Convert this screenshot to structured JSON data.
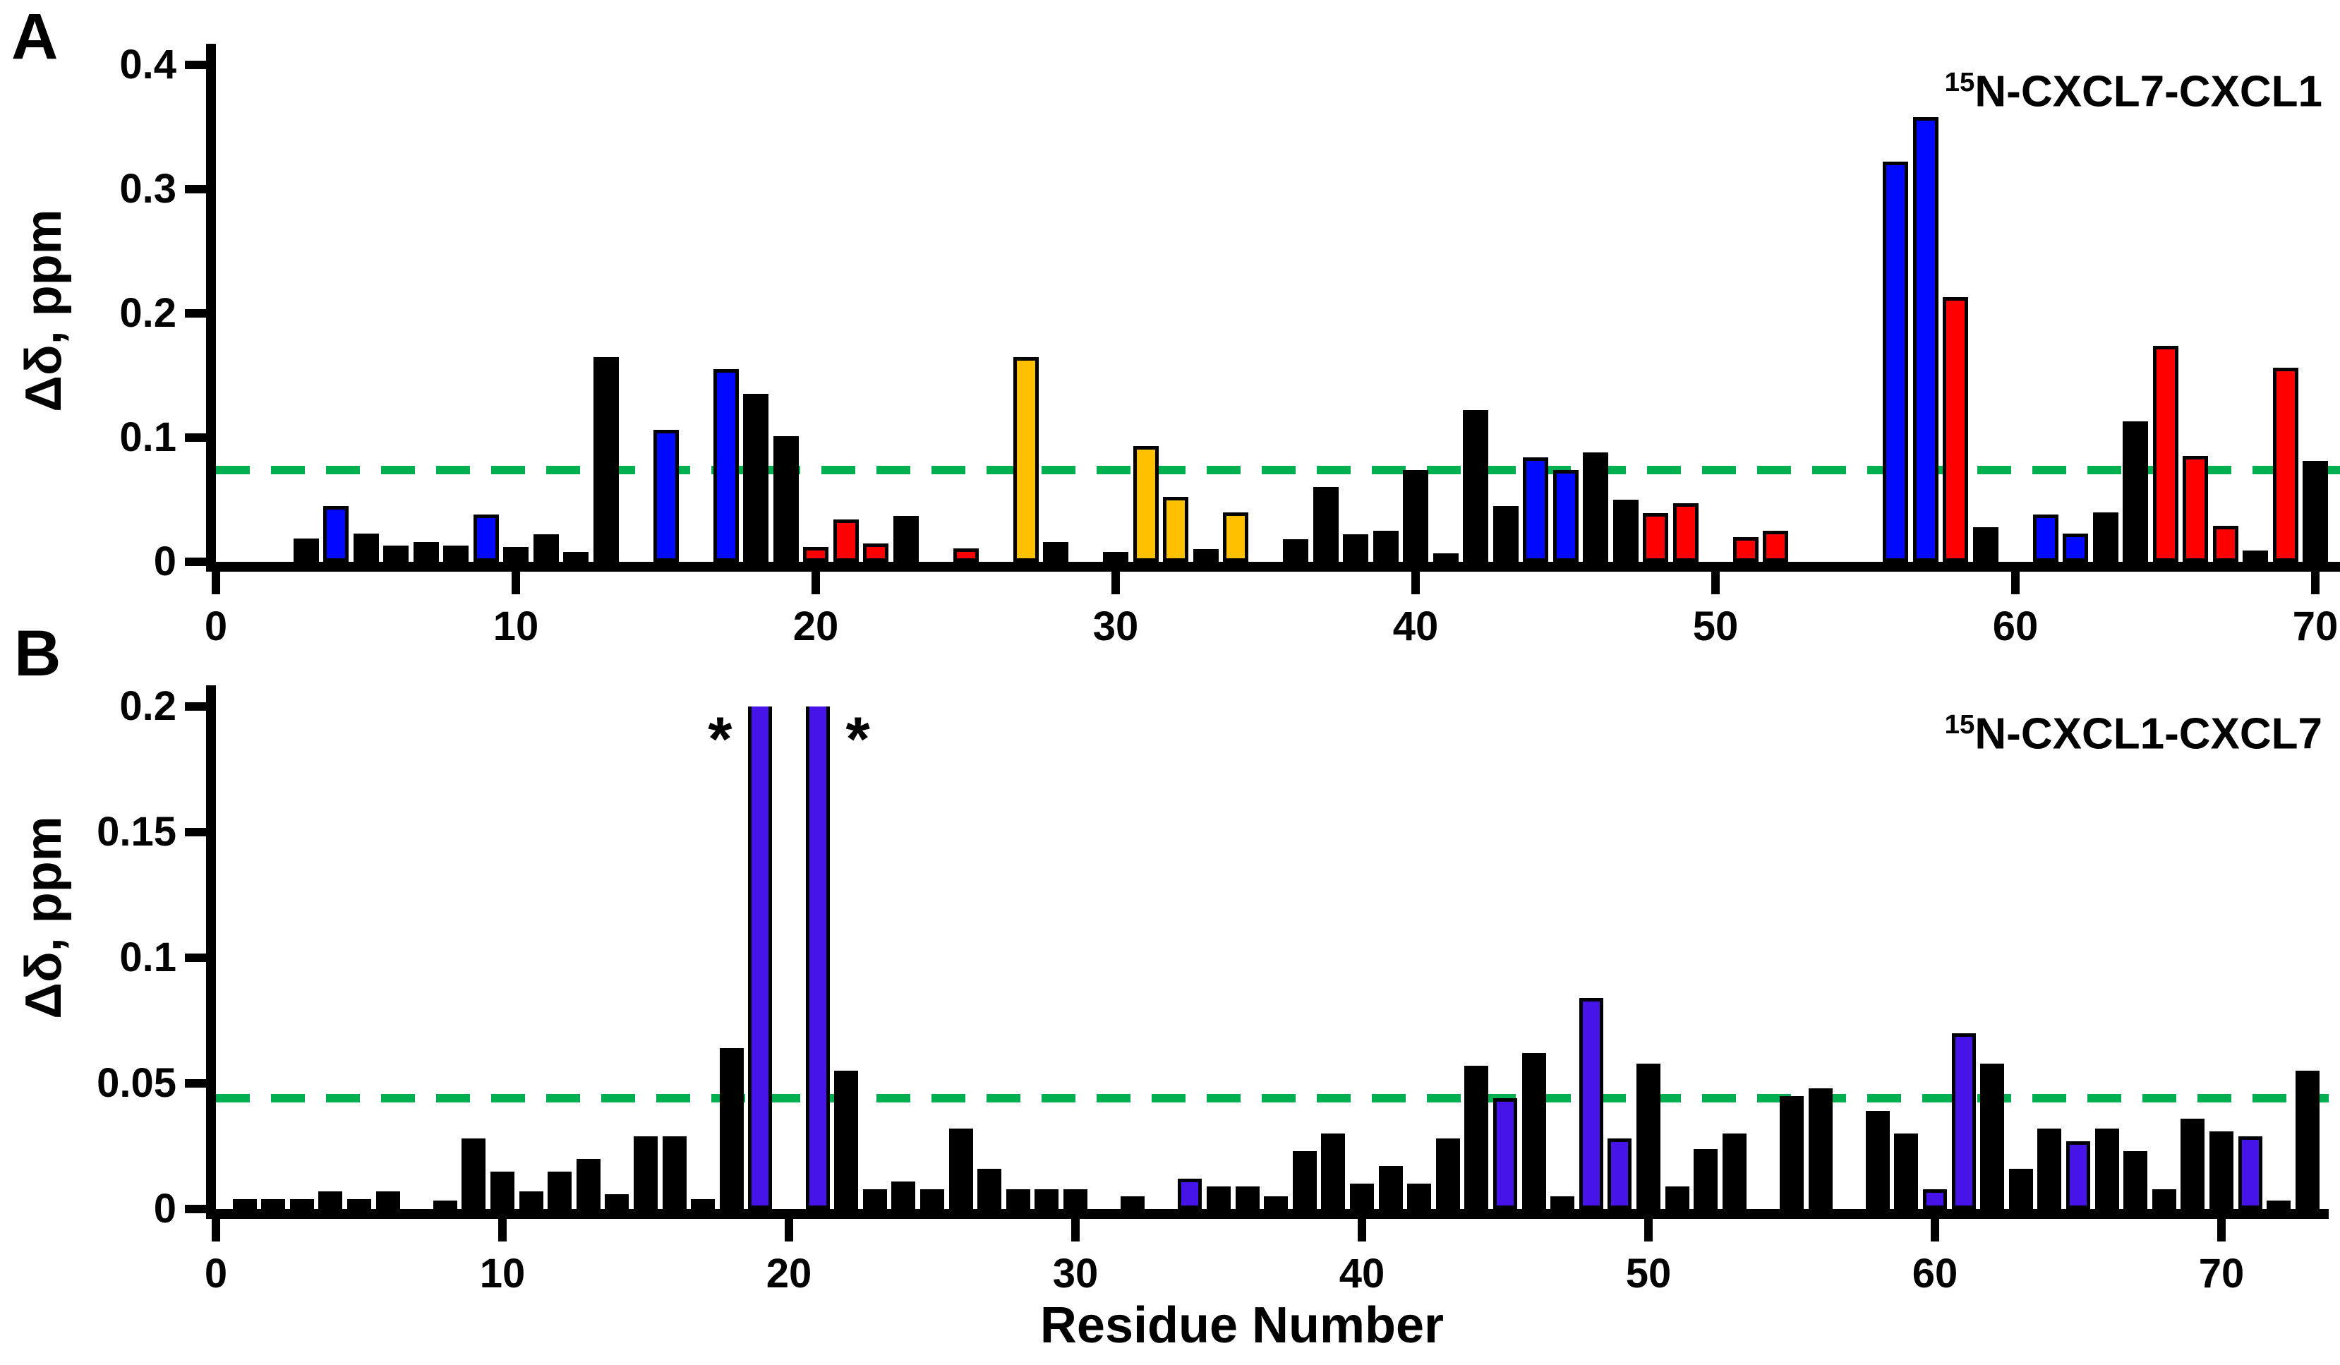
{
  "figure": {
    "xlabel": "Residue Number",
    "asterisk_char": "*"
  },
  "palette": {
    "black": "#000000",
    "blue": "#0008ff",
    "red": "#ff0000",
    "orange": "#ffc000",
    "purple": "#4614e9",
    "green": "#00b050"
  },
  "chart_data": [
    {
      "panel_letter": "A",
      "type": "bar",
      "title_sup": "15",
      "title_main": "N-CXCL7-CXCL1",
      "ylabel": "Δδ, ppm",
      "xlabel": "Residue Number",
      "ylim": [
        0,
        0.4
      ],
      "ytick_labels": [
        "0",
        "0.1",
        "0.2",
        "0.3",
        "0.4"
      ],
      "ytick_values": [
        0,
        0.1,
        0.2,
        0.3,
        0.4
      ],
      "xtick_values": [
        0,
        10,
        20,
        30,
        40,
        50,
        60,
        70
      ],
      "threshold": 0.074,
      "threshold_style": "green-dashed",
      "grid": false,
      "bars": [
        [
          3,
          0.019,
          "black"
        ],
        [
          4,
          0.045,
          "blue"
        ],
        [
          5,
          0.023,
          "black"
        ],
        [
          6,
          0.013,
          "black"
        ],
        [
          7,
          0.016,
          "black"
        ],
        [
          8,
          0.013,
          "black"
        ],
        [
          9,
          0.038,
          "blue"
        ],
        [
          10,
          0.012,
          "black"
        ],
        [
          11,
          0.022,
          "black"
        ],
        [
          12,
          0.008,
          "black"
        ],
        [
          13,
          0.165,
          "black"
        ],
        [
          15,
          0.106,
          "blue"
        ],
        [
          17,
          0.155,
          "blue"
        ],
        [
          18,
          0.135,
          "black"
        ],
        [
          19,
          0.101,
          "black"
        ],
        [
          20,
          0.012,
          "red"
        ],
        [
          21,
          0.034,
          "red"
        ],
        [
          22,
          0.015,
          "red"
        ],
        [
          23,
          0.037,
          "black"
        ],
        [
          25,
          0.011,
          "red"
        ],
        [
          27,
          0.165,
          "orange"
        ],
        [
          28,
          0.016,
          "black"
        ],
        [
          30,
          0.008,
          "black"
        ],
        [
          31,
          0.093,
          "orange"
        ],
        [
          32,
          0.052,
          "orange"
        ],
        [
          33,
          0.01,
          "black"
        ],
        [
          34,
          0.04,
          "orange"
        ],
        [
          36,
          0.018,
          "black"
        ],
        [
          37,
          0.06,
          "black"
        ],
        [
          38,
          0.022,
          "black"
        ],
        [
          39,
          0.025,
          "black"
        ],
        [
          40,
          0.074,
          "black"
        ],
        [
          41,
          0.004,
          "black"
        ],
        [
          42,
          0.122,
          "black"
        ],
        [
          43,
          0.045,
          "black"
        ],
        [
          44,
          0.084,
          "blue"
        ],
        [
          45,
          0.074,
          "blue"
        ],
        [
          46,
          0.088,
          "black"
        ],
        [
          47,
          0.05,
          "black"
        ],
        [
          48,
          0.039,
          "red"
        ],
        [
          49,
          0.047,
          "red"
        ],
        [
          51,
          0.02,
          "red"
        ],
        [
          52,
          0.025,
          "red"
        ],
        [
          56,
          0.322,
          "blue"
        ],
        [
          57,
          0.358,
          "blue"
        ],
        [
          58,
          0.213,
          "red"
        ],
        [
          59,
          0.028,
          "black"
        ],
        [
          61,
          0.038,
          "blue"
        ],
        [
          62,
          0.023,
          "blue"
        ],
        [
          63,
          0.04,
          "black"
        ],
        [
          64,
          0.113,
          "black"
        ],
        [
          65,
          0.174,
          "red"
        ],
        [
          66,
          0.085,
          "red"
        ],
        [
          67,
          0.029,
          "red"
        ],
        [
          68,
          0.009,
          "black"
        ],
        [
          69,
          0.156,
          "red"
        ],
        [
          70,
          0.081,
          "black"
        ]
      ],
      "clipped_bars": [],
      "asterisks": []
    },
    {
      "panel_letter": "B",
      "type": "bar",
      "title_sup": "15",
      "title_main": "N-CXCL1-CXCL7",
      "ylabel": "Δδ, ppm",
      "xlabel": "Residue Number",
      "ylim": [
        0,
        0.2
      ],
      "ytick_labels": [
        "0",
        "0.05",
        "0.1",
        "0.15",
        "0.2"
      ],
      "ytick_values": [
        0,
        0.05,
        0.1,
        0.15,
        0.2
      ],
      "xtick_values": [
        0,
        10,
        20,
        30,
        40,
        50,
        60,
        70
      ],
      "threshold": 0.044,
      "threshold_style": "green-dashed",
      "grid": false,
      "bars": [
        [
          1,
          0.004,
          "black"
        ],
        [
          2,
          0.004,
          "black"
        ],
        [
          3,
          0.004,
          "black"
        ],
        [
          4,
          0.007,
          "black"
        ],
        [
          5,
          0.004,
          "black"
        ],
        [
          6,
          0.007,
          "black"
        ],
        [
          8,
          0.002,
          "black"
        ],
        [
          9,
          0.028,
          "black"
        ],
        [
          10,
          0.015,
          "black"
        ],
        [
          11,
          0.007,
          "black"
        ],
        [
          12,
          0.015,
          "black"
        ],
        [
          13,
          0.02,
          "black"
        ],
        [
          14,
          0.006,
          "black"
        ],
        [
          15,
          0.029,
          "black"
        ],
        [
          16,
          0.029,
          "black"
        ],
        [
          17,
          0.004,
          "black"
        ],
        [
          18,
          0.064,
          "black"
        ],
        [
          19,
          0.205,
          "purple"
        ],
        [
          21,
          0.205,
          "purple"
        ],
        [
          22,
          0.055,
          "black"
        ],
        [
          23,
          0.008,
          "black"
        ],
        [
          24,
          0.011,
          "black"
        ],
        [
          25,
          0.008,
          "black"
        ],
        [
          26,
          0.032,
          "black"
        ],
        [
          27,
          0.016,
          "black"
        ],
        [
          28,
          0.008,
          "black"
        ],
        [
          29,
          0.008,
          "black"
        ],
        [
          30,
          0.008,
          "black"
        ],
        [
          32,
          0.005,
          "black"
        ],
        [
          34,
          0.012,
          "purple"
        ],
        [
          35,
          0.009,
          "black"
        ],
        [
          36,
          0.009,
          "black"
        ],
        [
          37,
          0.005,
          "black"
        ],
        [
          38,
          0.023,
          "black"
        ],
        [
          39,
          0.03,
          "black"
        ],
        [
          40,
          0.01,
          "black"
        ],
        [
          41,
          0.017,
          "black"
        ],
        [
          42,
          0.01,
          "black"
        ],
        [
          43,
          0.028,
          "black"
        ],
        [
          44,
          0.057,
          "black"
        ],
        [
          45,
          0.044,
          "purple"
        ],
        [
          46,
          0.062,
          "black"
        ],
        [
          47,
          0.005,
          "black"
        ],
        [
          48,
          0.084,
          "purple"
        ],
        [
          49,
          0.028,
          "purple"
        ],
        [
          50,
          0.058,
          "black"
        ],
        [
          51,
          0.009,
          "black"
        ],
        [
          52,
          0.024,
          "black"
        ],
        [
          53,
          0.03,
          "black"
        ],
        [
          55,
          0.045,
          "black"
        ],
        [
          56,
          0.048,
          "black"
        ],
        [
          58,
          0.039,
          "black"
        ],
        [
          59,
          0.03,
          "black"
        ],
        [
          60,
          0.008,
          "purple"
        ],
        [
          61,
          0.07,
          "purple"
        ],
        [
          62,
          0.058,
          "black"
        ],
        [
          63,
          0.016,
          "black"
        ],
        [
          64,
          0.032,
          "black"
        ],
        [
          65,
          0.027,
          "purple"
        ],
        [
          66,
          0.032,
          "black"
        ],
        [
          67,
          0.023,
          "black"
        ],
        [
          68,
          0.008,
          "black"
        ],
        [
          69,
          0.036,
          "black"
        ],
        [
          70,
          0.031,
          "black"
        ],
        [
          71,
          0.029,
          "purple"
        ],
        [
          72,
          0.003,
          "black"
        ],
        [
          73,
          0.055,
          "black"
        ]
      ],
      "clipped_bars": [
        19,
        21
      ],
      "asterisks": [
        {
          "residue": 19,
          "side": "left"
        },
        {
          "residue": 21,
          "side": "right"
        }
      ]
    }
  ]
}
